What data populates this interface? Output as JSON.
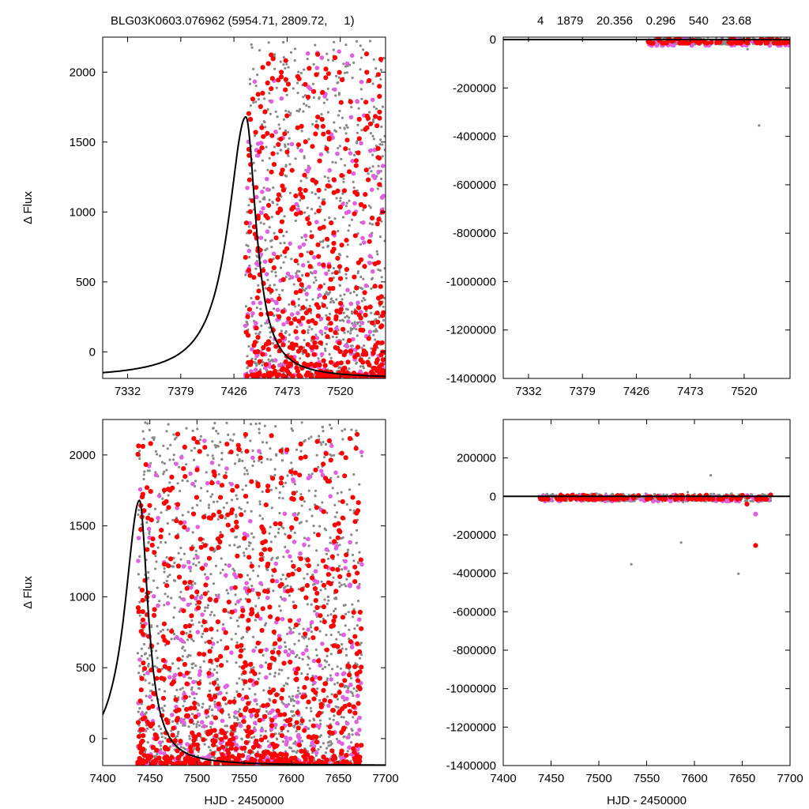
{
  "header": {
    "title": "BLG03K0603.076962 (5954.71, 2809.72,     1)",
    "params": "4    1879    20.356    0.296    540    23.68"
  },
  "colors": {
    "model_curve": "#000000",
    "series_gray": "#888888",
    "series_red": "#ff0000",
    "series_magenta": "#e060e0"
  },
  "chart_data": [
    {
      "panel": "top-left",
      "type": "scatter",
      "xlabel": "",
      "ylabel": "Δ Flux",
      "xlim": [
        7310,
        7560
      ],
      "ylim": [
        -190,
        2250
      ],
      "xticks": [
        7332,
        7379,
        7426,
        7473,
        7520
      ],
      "yticks": [
        0,
        500,
        1000,
        1500,
        2000
      ],
      "model": {
        "t0": 7436.5,
        "peak": 1680,
        "baseline": -190,
        "width_left": 19,
        "width_right": 11
      },
      "series": [
        {
          "color": "gray",
          "x_range": [
            7436,
            7560
          ],
          "y_range": [
            -180,
            2230
          ],
          "count": 900
        },
        {
          "color": "red",
          "x_range": [
            7436,
            7560
          ],
          "y_range": [
            -180,
            2150
          ],
          "count": 500
        },
        {
          "color": "magenta",
          "x_range": [
            7436,
            7560
          ],
          "y_range": [
            -180,
            2150
          ],
          "count": 230
        }
      ]
    },
    {
      "panel": "top-right",
      "type": "scatter",
      "xlabel": "",
      "ylabel": "",
      "xlim": [
        7310,
        7560
      ],
      "ylim": [
        -1400000,
        10000
      ],
      "xticks": [
        7332,
        7379,
        7426,
        7473,
        7520
      ],
      "yticks": [
        0,
        -200000,
        -400000,
        -600000,
        -800000,
        -1000000,
        -1200000,
        -1400000
      ],
      "outliers": [
        {
          "x": 7533,
          "y": -355000
        },
        {
          "x": 7523,
          "y": -40000
        }
      ],
      "series": [
        {
          "color": "gray",
          "x_range": [
            7436,
            7560
          ],
          "y_range": [
            -20000,
            10000
          ],
          "count": 300
        },
        {
          "color": "red",
          "x_range": [
            7436,
            7560
          ],
          "y_range": [
            -15000,
            5000
          ],
          "count": 80
        },
        {
          "color": "magenta",
          "x_range": [
            7436,
            7560
          ],
          "y_range": [
            -25000,
            5000
          ],
          "count": 40
        }
      ]
    },
    {
      "panel": "bottom-left",
      "type": "scatter",
      "xlabel": "HJD - 2450000",
      "ylabel": "Δ Flux",
      "xlim": [
        7400,
        7700
      ],
      "ylim": [
        -190,
        2250
      ],
      "xticks": [
        7400,
        7450,
        7500,
        7550,
        7600,
        7650,
        7700
      ],
      "yticks": [
        0,
        500,
        1000,
        1500,
        2000
      ],
      "model": {
        "t0": 7439,
        "peak": 1680,
        "baseline": -190,
        "width_left": 19,
        "width_right": 11
      },
      "series": [
        {
          "color": "gray",
          "x_range": [
            7437,
            7675
          ],
          "y_range": [
            -180,
            2230
          ],
          "count": 1500
        },
        {
          "color": "red",
          "x_range": [
            7437,
            7675
          ],
          "y_range": [
            -180,
            2150
          ],
          "count": 800
        },
        {
          "color": "magenta",
          "x_range": [
            7437,
            7675
          ],
          "y_range": [
            -180,
            2100
          ],
          "count": 380
        }
      ]
    },
    {
      "panel": "bottom-right",
      "type": "scatter",
      "xlabel": "HJD - 2450000",
      "ylabel": "",
      "xlim": [
        7400,
        7700
      ],
      "ylim": [
        -1400000,
        400000
      ],
      "xticks": [
        7400,
        7450,
        7500,
        7550,
        7600,
        7650,
        7700
      ],
      "yticks": [
        200000,
        0,
        -200000,
        -400000,
        -600000,
        -800000,
        -1000000,
        -1200000,
        -1400000
      ],
      "outliers": [
        {
          "x": 7664,
          "y": -255000,
          "color": "red"
        },
        {
          "x": 7664,
          "y": -92000,
          "color": "magenta"
        },
        {
          "x": 7655,
          "y": -40000,
          "color": "red"
        },
        {
          "x": 7586,
          "y": -240000,
          "color": "gray"
        },
        {
          "x": 7534,
          "y": -353000,
          "color": "gray"
        },
        {
          "x": 7646,
          "y": -402000,
          "color": "gray"
        },
        {
          "x": 7617,
          "y": 110000,
          "color": "gray"
        },
        {
          "x": 7593,
          "y": 22000,
          "color": "gray"
        },
        {
          "x": 7588,
          "y": -30000,
          "color": "gray"
        }
      ],
      "series": [
        {
          "color": "gray",
          "x_range": [
            7437,
            7680
          ],
          "y_range": [
            -25000,
            15000
          ],
          "count": 500
        },
        {
          "color": "red",
          "x_range": [
            7437,
            7680
          ],
          "y_range": [
            -15000,
            8000
          ],
          "count": 120
        },
        {
          "color": "magenta",
          "x_range": [
            7437,
            7680
          ],
          "y_range": [
            -25000,
            8000
          ],
          "count": 60
        }
      ]
    }
  ]
}
